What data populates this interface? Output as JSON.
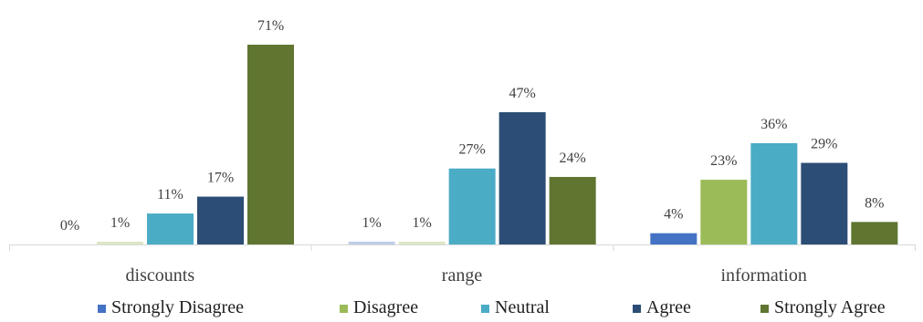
{
  "chart_data": {
    "type": "bar",
    "categories": [
      "discounts",
      "range",
      "information"
    ],
    "series": [
      {
        "name": "Strongly Disagree",
        "color": "#4472C4",
        "values": [
          0,
          1,
          4
        ],
        "labels": [
          "0%",
          "1%",
          "4%"
        ]
      },
      {
        "name": "Disagree",
        "color": "#9BBB59",
        "values": [
          1,
          1,
          23
        ],
        "labels": [
          "1%",
          "1%",
          "23%"
        ]
      },
      {
        "name": "Neutral",
        "color": "#4BACC6",
        "values": [
          11,
          27,
          36
        ],
        "labels": [
          "11%",
          "27%",
          "36%"
        ]
      },
      {
        "name": "Agree",
        "color": "#2C4D75",
        "values": [
          17,
          47,
          29
        ],
        "labels": [
          "17%",
          "47%",
          "29%"
        ]
      },
      {
        "name": "Strongly Agree",
        "color": "#5F7530",
        "values": [
          71,
          24,
          8
        ],
        "labels": [
          "71%",
          "24%",
          "8%"
        ]
      }
    ],
    "ylim": [
      0,
      71
    ],
    "grid": false,
    "legend_position": "bottom"
  }
}
